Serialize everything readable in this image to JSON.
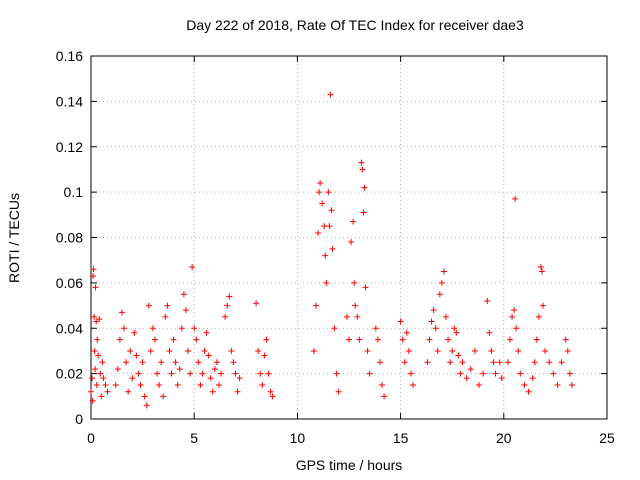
{
  "chart_data": {
    "type": "scatter",
    "title": "Day 222 of 2018, Rate Of TEC Index for receiver dae3",
    "xlabel": "GPS time / hours",
    "ylabel": "ROTI / TECUs",
    "xlim": [
      0,
      25
    ],
    "ylim": [
      0,
      0.16
    ],
    "xticks": [
      0,
      5,
      10,
      15,
      20,
      25
    ],
    "xtick_labels": [
      "0",
      "5",
      "10",
      "15",
      "20",
      "25"
    ],
    "yticks": [
      0,
      0.02,
      0.04,
      0.06,
      0.08,
      0.1,
      0.12,
      0.14,
      0.16
    ],
    "ytick_labels": [
      "0",
      "0.02",
      "0.04",
      "0.06",
      "0.08",
      "0.1",
      "0.12",
      "0.14",
      "0.16"
    ],
    "grid": true,
    "marker": "+",
    "color": "#ff0000",
    "series": [
      {
        "points": [
          [
            0.0,
            0.012
          ],
          [
            0.05,
            0.018
          ],
          [
            0.08,
            0.008
          ],
          [
            0.1,
            0.063
          ],
          [
            0.12,
            0.066
          ],
          [
            0.15,
            0.045
          ],
          [
            0.18,
            0.03
          ],
          [
            0.2,
            0.022
          ],
          [
            0.22,
            0.058
          ],
          [
            0.25,
            0.043
          ],
          [
            0.28,
            0.015
          ],
          [
            0.3,
            0.035
          ],
          [
            0.35,
            0.028
          ],
          [
            0.4,
            0.044
          ],
          [
            0.45,
            0.02
          ],
          [
            0.5,
            0.01
          ],
          [
            0.55,
            0.025
          ],
          [
            0.6,
            0.018
          ],
          [
            0.7,
            0.015
          ],
          [
            0.8,
            0.012
          ],
          [
            1.2,
            0.015
          ],
          [
            1.3,
            0.022
          ],
          [
            1.4,
            0.035
          ],
          [
            1.5,
            0.047
          ],
          [
            1.6,
            0.04
          ],
          [
            1.7,
            0.025
          ],
          [
            1.8,
            0.012
          ],
          [
            1.9,
            0.03
          ],
          [
            2.0,
            0.018
          ],
          [
            2.1,
            0.038
          ],
          [
            2.2,
            0.028
          ],
          [
            2.3,
            0.02
          ],
          [
            2.4,
            0.015
          ],
          [
            2.5,
            0.025
          ],
          [
            2.6,
            0.01
          ],
          [
            2.7,
            0.006
          ],
          [
            2.8,
            0.05
          ],
          [
            2.9,
            0.03
          ],
          [
            3.0,
            0.04
          ],
          [
            3.1,
            0.035
          ],
          [
            3.2,
            0.02
          ],
          [
            3.3,
            0.015
          ],
          [
            3.4,
            0.025
          ],
          [
            3.5,
            0.01
          ],
          [
            3.6,
            0.045
          ],
          [
            3.7,
            0.05
          ],
          [
            3.8,
            0.03
          ],
          [
            3.9,
            0.02
          ],
          [
            4.0,
            0.035
          ],
          [
            4.1,
            0.025
          ],
          [
            4.2,
            0.015
          ],
          [
            4.3,
            0.022
          ],
          [
            4.4,
            0.04
          ],
          [
            4.5,
            0.055
          ],
          [
            4.6,
            0.048
          ],
          [
            4.7,
            0.03
          ],
          [
            4.8,
            0.02
          ],
          [
            4.9,
            0.067
          ],
          [
            5.0,
            0.04
          ],
          [
            5.1,
            0.035
          ],
          [
            5.2,
            0.025
          ],
          [
            5.3,
            0.015
          ],
          [
            5.4,
            0.02
          ],
          [
            5.5,
            0.03
          ],
          [
            5.6,
            0.038
          ],
          [
            5.7,
            0.028
          ],
          [
            5.8,
            0.018
          ],
          [
            5.9,
            0.012
          ],
          [
            6.0,
            0.022
          ],
          [
            6.1,
            0.025
          ],
          [
            6.2,
            0.015
          ],
          [
            6.3,
            0.02
          ],
          [
            6.5,
            0.045
          ],
          [
            6.6,
            0.05
          ],
          [
            6.7,
            0.054
          ],
          [
            6.8,
            0.03
          ],
          [
            6.9,
            0.025
          ],
          [
            7.0,
            0.02
          ],
          [
            7.1,
            0.012
          ],
          [
            7.2,
            0.018
          ],
          [
            8.0,
            0.051
          ],
          [
            8.1,
            0.03
          ],
          [
            8.2,
            0.02
          ],
          [
            8.3,
            0.015
          ],
          [
            8.4,
            0.028
          ],
          [
            8.5,
            0.035
          ],
          [
            8.6,
            0.02
          ],
          [
            8.7,
            0.012
          ],
          [
            8.8,
            0.01
          ],
          [
            10.8,
            0.03
          ],
          [
            10.9,
            0.05
          ],
          [
            11.0,
            0.082
          ],
          [
            11.05,
            0.1
          ],
          [
            11.1,
            0.104
          ],
          [
            11.2,
            0.095
          ],
          [
            11.3,
            0.085
          ],
          [
            11.35,
            0.072
          ],
          [
            11.4,
            0.06
          ],
          [
            11.5,
            0.1
          ],
          [
            11.55,
            0.085
          ],
          [
            11.6,
            0.143
          ],
          [
            11.65,
            0.092
          ],
          [
            11.7,
            0.075
          ],
          [
            11.8,
            0.04
          ],
          [
            11.9,
            0.02
          ],
          [
            12.0,
            0.012
          ],
          [
            12.4,
            0.045
          ],
          [
            12.5,
            0.035
          ],
          [
            12.6,
            0.078
          ],
          [
            12.7,
            0.087
          ],
          [
            12.75,
            0.06
          ],
          [
            12.8,
            0.05
          ],
          [
            12.9,
            0.045
          ],
          [
            13.0,
            0.035
          ],
          [
            13.1,
            0.113
          ],
          [
            13.15,
            0.11
          ],
          [
            13.2,
            0.091
          ],
          [
            13.25,
            0.102
          ],
          [
            13.3,
            0.058
          ],
          [
            13.4,
            0.03
          ],
          [
            13.5,
            0.02
          ],
          [
            13.8,
            0.04
          ],
          [
            13.9,
            0.035
          ],
          [
            14.0,
            0.025
          ],
          [
            14.1,
            0.015
          ],
          [
            14.2,
            0.01
          ],
          [
            15.0,
            0.043
          ],
          [
            15.1,
            0.035
          ],
          [
            15.2,
            0.025
          ],
          [
            15.3,
            0.038
          ],
          [
            15.4,
            0.03
          ],
          [
            15.5,
            0.02
          ],
          [
            15.6,
            0.015
          ],
          [
            16.3,
            0.025
          ],
          [
            16.4,
            0.035
          ],
          [
            16.5,
            0.043
          ],
          [
            16.6,
            0.048
          ],
          [
            16.7,
            0.04
          ],
          [
            16.8,
            0.03
          ],
          [
            16.9,
            0.055
          ],
          [
            17.0,
            0.06
          ],
          [
            17.1,
            0.065
          ],
          [
            17.2,
            0.045
          ],
          [
            17.3,
            0.035
          ],
          [
            17.4,
            0.025
          ],
          [
            17.5,
            0.03
          ],
          [
            17.6,
            0.04
          ],
          [
            17.7,
            0.038
          ],
          [
            17.8,
            0.028
          ],
          [
            17.9,
            0.02
          ],
          [
            18.0,
            0.025
          ],
          [
            18.2,
            0.018
          ],
          [
            18.4,
            0.022
          ],
          [
            18.6,
            0.03
          ],
          [
            18.8,
            0.015
          ],
          [
            19.0,
            0.02
          ],
          [
            19.2,
            0.052
          ],
          [
            19.3,
            0.038
          ],
          [
            19.4,
            0.03
          ],
          [
            19.5,
            0.025
          ],
          [
            19.6,
            0.02
          ],
          [
            19.8,
            0.025
          ],
          [
            19.9,
            0.018
          ],
          [
            20.2,
            0.025
          ],
          [
            20.3,
            0.035
          ],
          [
            20.4,
            0.045
          ],
          [
            20.5,
            0.048
          ],
          [
            20.55,
            0.097
          ],
          [
            20.6,
            0.04
          ],
          [
            20.7,
            0.03
          ],
          [
            20.8,
            0.02
          ],
          [
            21.0,
            0.015
          ],
          [
            21.2,
            0.012
          ],
          [
            21.4,
            0.018
          ],
          [
            21.5,
            0.025
          ],
          [
            21.6,
            0.035
          ],
          [
            21.7,
            0.045
          ],
          [
            21.8,
            0.067
          ],
          [
            21.85,
            0.065
          ],
          [
            21.9,
            0.05
          ],
          [
            22.0,
            0.03
          ],
          [
            22.2,
            0.025
          ],
          [
            22.4,
            0.02
          ],
          [
            22.6,
            0.015
          ],
          [
            22.8,
            0.025
          ],
          [
            23.0,
            0.035
          ],
          [
            23.1,
            0.03
          ],
          [
            23.2,
            0.02
          ],
          [
            23.3,
            0.015
          ]
        ]
      }
    ]
  }
}
